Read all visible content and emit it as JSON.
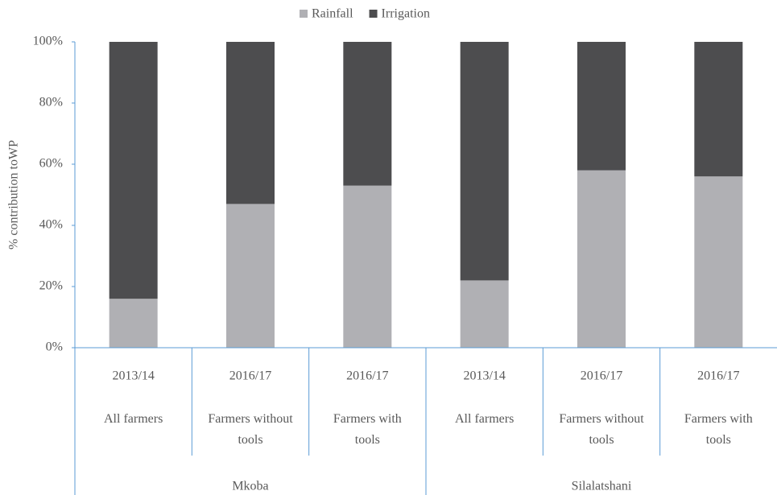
{
  "chart_data": {
    "type": "stacked_bar",
    "y_axis_label": "% contribution toWP",
    "categories": [
      "2013/14",
      "2016/17",
      "2016/17",
      "2013/14",
      "2016/17",
      "2016/17"
    ],
    "groups": [
      "All farmers",
      "Farmers without tools",
      "Farmers with tools",
      "All farmers",
      "Farmers without tools",
      "Farmers with tools"
    ],
    "regions": [
      "Mkoba",
      "Silalatshani"
    ],
    "series": [
      {
        "name": "Rainfall",
        "color": "#b0b0b4",
        "values": [
          16,
          47,
          53,
          22,
          58,
          56
        ]
      },
      {
        "name": "Irrigation",
        "color": "#4d4d4f",
        "values": [
          84,
          53,
          47,
          78,
          42,
          44
        ]
      }
    ],
    "ylim": [
      0,
      100
    ],
    "yticks": [
      {
        "value": 0,
        "label": "0%"
      },
      {
        "value": 20,
        "label": "20%"
      },
      {
        "value": 40,
        "label": "40%"
      },
      {
        "value": 60,
        "label": "60%"
      },
      {
        "value": 80,
        "label": "80%"
      },
      {
        "value": 100,
        "label": "100%"
      }
    ],
    "legend": "top"
  }
}
